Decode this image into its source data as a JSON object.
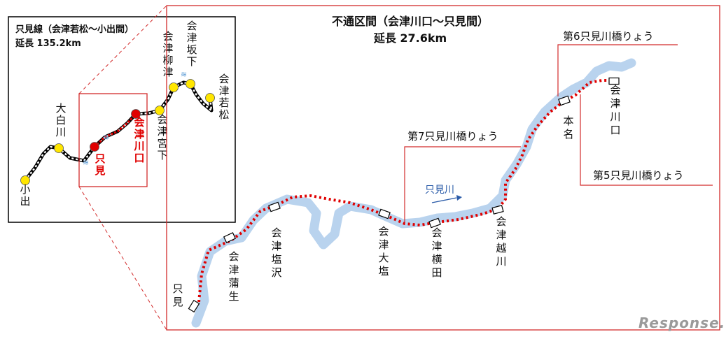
{
  "inset": {
    "title": "只見線（会津若松～小出間）",
    "length": "延長 135.2km",
    "stations": [
      {
        "name": "小出",
        "status": "open"
      },
      {
        "name": "大白川",
        "status": "open"
      },
      {
        "name": "只見",
        "status": "terminus"
      },
      {
        "name": "会津川口",
        "status": "terminus"
      },
      {
        "name": "会津宮下",
        "status": "open"
      },
      {
        "name": "会津柳津",
        "status": "open"
      },
      {
        "name": "会津坂下",
        "status": "open"
      },
      {
        "name": "会津若松",
        "status": "open"
      }
    ]
  },
  "main": {
    "title": "不通区間（会津川口～只見間）",
    "length": "延長 27.6km",
    "river_label": "只見川",
    "stations": [
      {
        "name": "只見"
      },
      {
        "name": "会津蒲生"
      },
      {
        "name": "会津塩沢"
      },
      {
        "name": "会津大塩"
      },
      {
        "name": "会津横田"
      },
      {
        "name": "会津越川"
      },
      {
        "name": "本名"
      },
      {
        "name": "会津川口"
      }
    ],
    "bridges": [
      {
        "label": "第6只見川橋りょう"
      },
      {
        "label": "第7只見川橋りょう"
      },
      {
        "label": "第5只見川橋りょう"
      }
    ]
  },
  "watermark": "Response.",
  "colors": {
    "frame_red": "#d22b2b",
    "closed_line": "#e00000",
    "river": "#b9d3ee",
    "station_open": "#ffe600",
    "station_terminus": "#e00000"
  },
  "icons": [
    "station-building-icon",
    "station-marker-icon",
    "bridge-icon",
    "flow-arrow-icon"
  ]
}
